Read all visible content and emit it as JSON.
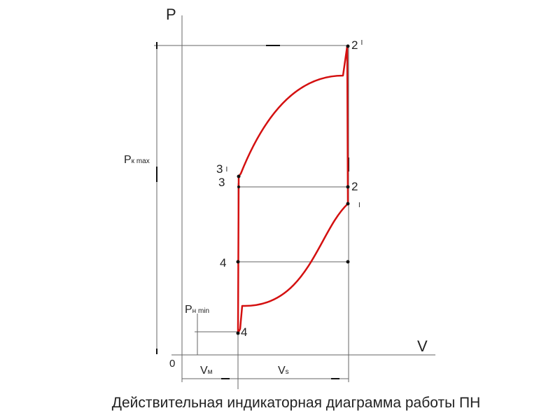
{
  "title": "Действительная индикаторная диаграмма работы ПН",
  "axes": {
    "p_label": "P",
    "v_label": "V",
    "origin": "0"
  },
  "labels": {
    "pk_max_main": "P",
    "pk_max_sub": "к max",
    "pn_min_main": "P",
    "pn_min_sub": "н min",
    "vm_main": "V",
    "vm_sub": "м",
    "vs_main": "V",
    "vs_sub": "s"
  },
  "points": {
    "p2prime": "2",
    "p2prime_mark": "I",
    "p2": "2",
    "p1prime_mark": "I",
    "p3prime": "3",
    "p3prime_mark": "I",
    "p3": "3",
    "p4": "4",
    "p4low": "4"
  },
  "colors": {
    "cycle": "#d41010",
    "lines": "#555555"
  }
}
